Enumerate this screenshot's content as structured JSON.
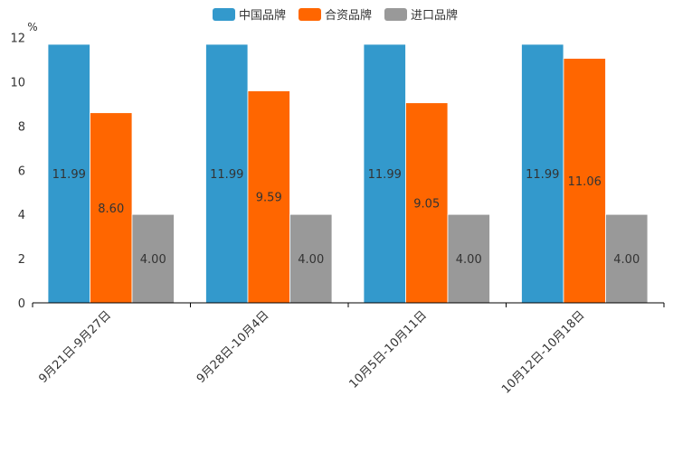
{
  "chart_data": {
    "type": "bar",
    "unit_label": "%",
    "categories": [
      "9月21日-9月27日",
      "9月28日-10月4日",
      "10月5日-10月11日",
      "10月12日-10月18日"
    ],
    "series": [
      {
        "name": "中国品牌",
        "color": "#3399cc",
        "values": [
          11.99,
          11.99,
          11.99,
          11.99
        ],
        "labels": [
          "11.99",
          "11.99",
          "11.99",
          "11.99"
        ]
      },
      {
        "name": "合资品牌",
        "color": "#ff6600",
        "values": [
          8.6,
          9.59,
          9.05,
          11.06
        ],
        "labels": [
          "8.60",
          "9.59",
          "9.05",
          "11.06"
        ]
      },
      {
        "name": "进口品牌",
        "color": "#999999",
        "values": [
          4.0,
          4.0,
          4.0,
          4.0
        ],
        "labels": [
          "4.00",
          "4.00",
          "4.00",
          "4.00"
        ]
      }
    ],
    "y_ticks": [
      "0",
      "2",
      "4",
      "6",
      "8",
      "10",
      "12"
    ],
    "ylim": [
      0,
      12
    ],
    "legend_position": "top-center",
    "grid": false
  }
}
